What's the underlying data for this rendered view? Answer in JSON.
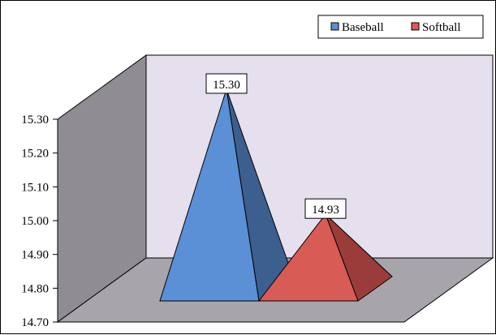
{
  "chart_data": {
    "type": "bar",
    "style": "3d-pyramid",
    "categories": [
      ""
    ],
    "series": [
      {
        "name": "Baseball",
        "values": [
          15.3
        ],
        "color": "#5b8fd6",
        "side_color": "#3d5f8f"
      },
      {
        "name": "Softball",
        "values": [
          14.93
        ],
        "color": "#d95b55",
        "side_color": "#9a3c3a"
      }
    ],
    "data_labels": [
      "15.30",
      "14.93"
    ],
    "ylim": [
      14.7,
      15.3
    ],
    "yticks": [
      "15.30",
      "15.20",
      "15.10",
      "15.00",
      "14.90",
      "14.80",
      "14.70"
    ],
    "title": "",
    "xlabel": "",
    "ylabel": "",
    "grid": false,
    "legend_position": "top-right",
    "wall_colors": {
      "back": "#e6e0ee",
      "side": "#8f8c94",
      "floor": "#a7a4ab"
    }
  }
}
